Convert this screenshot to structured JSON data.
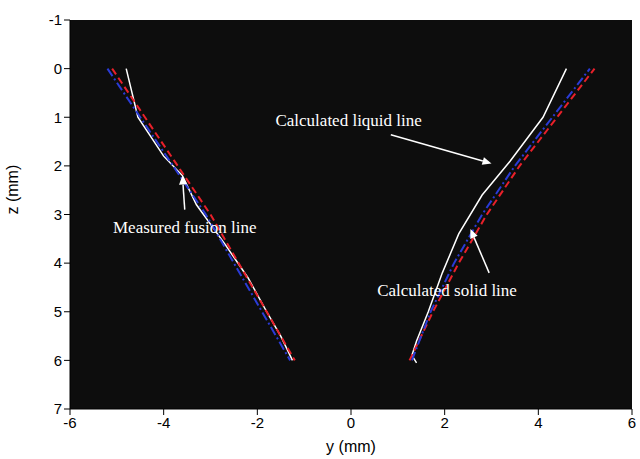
{
  "chart_data": {
    "type": "line",
    "x_label": "y (mm)",
    "y_label": "z (mm)",
    "xlim": [
      -6,
      6
    ],
    "xticks": [
      -6,
      -4,
      -2,
      0,
      2,
      4,
      6
    ],
    "ylim": [
      -1,
      7
    ],
    "yticks": [
      -1,
      0,
      1,
      2,
      3,
      4,
      5,
      6,
      7
    ],
    "y_reversed": true,
    "series": [
      {
        "name": "Measured fusion line",
        "color": "#ffffff",
        "line_style": "solid",
        "x": [
          -4.8,
          -4.55,
          -4.0,
          -3.6,
          -3.3,
          -2.7,
          -2.2,
          -1.8,
          -1.5,
          -1.25,
          0,
          1.4,
          1.3,
          1.4,
          1.65,
          1.95,
          2.3,
          2.8,
          3.4,
          4.1,
          4.6
        ],
        "values": [
          0,
          1,
          1.8,
          2.2,
          2.8,
          3.6,
          4.3,
          5.0,
          5.5,
          6.0,
          null,
          6.05,
          5.9,
          5.6,
          5.0,
          4.2,
          3.4,
          2.6,
          1.9,
          1.0,
          0
        ]
      },
      {
        "name": "Calculated liquid line",
        "color": "#e8202a",
        "line_style": "dashed",
        "x": [
          -5.1,
          -4.4,
          -3.7,
          -3.0,
          -2.4,
          -1.8,
          -1.2,
          0,
          1.25,
          1.75,
          2.3,
          2.9,
          3.6,
          4.4,
          5.2
        ],
        "values": [
          0,
          1,
          2,
          3,
          4,
          5,
          6,
          null,
          6,
          5,
          4,
          3,
          2,
          1,
          0
        ]
      },
      {
        "name": "Calculated solid line",
        "color": "#2a3bd6",
        "line_style": "dashdot",
        "x": [
          -5.2,
          -4.5,
          -3.8,
          -3.1,
          -2.5,
          -1.9,
          -1.3,
          0,
          1.3,
          1.7,
          2.2,
          2.8,
          3.5,
          4.3,
          5.1
        ],
        "values": [
          0,
          1,
          2,
          3,
          4,
          5,
          6,
          null,
          6,
          5,
          4,
          3,
          2,
          1,
          0
        ]
      }
    ],
    "annotations": [
      {
        "text": "Calculated liquid line",
        "x": -0.05,
        "y": 1.06,
        "arrow_x": 3.0,
        "arrow_y": 1.95
      },
      {
        "text": "Measured fusion line",
        "x": -3.55,
        "y": 3.25,
        "arrow_x": -3.6,
        "arrow_y": 2.2
      },
      {
        "text": "Calculated solid line",
        "x": 2.05,
        "y": 4.55,
        "arrow_x": 2.55,
        "arrow_y": 3.3
      }
    ]
  }
}
